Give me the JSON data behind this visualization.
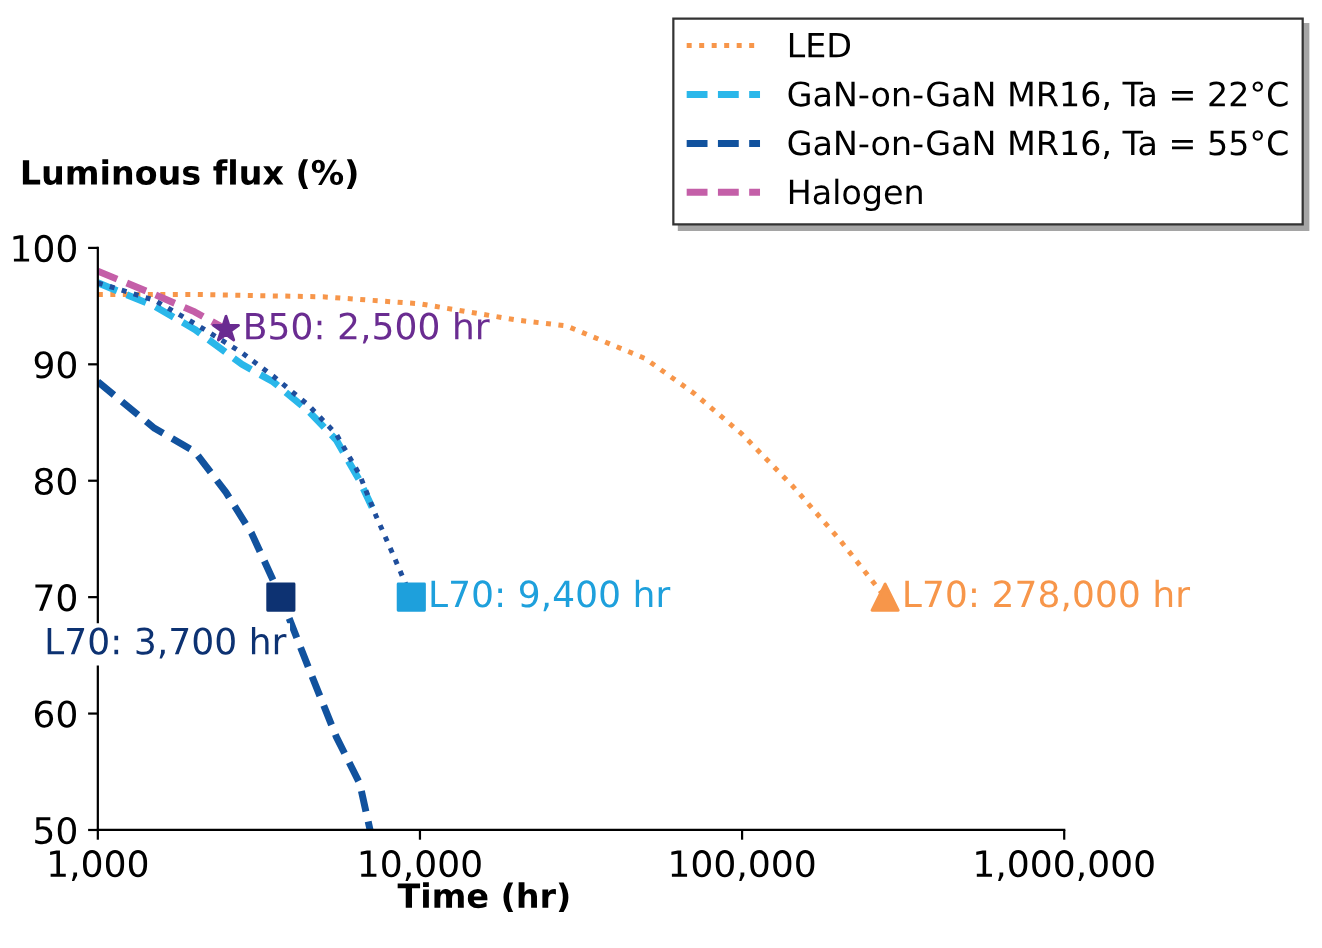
{
  "chart_data": {
    "type": "line",
    "xlabel": "Time (hr)",
    "ylabel": "Luminous flux (%)",
    "log": "x",
    "xlim": [
      1000,
      1000000
    ],
    "ylim": [
      50,
      100
    ],
    "xticks": [
      {
        "value": 1000,
        "label": "1,000"
      },
      {
        "value": 10000,
        "label": "10,000"
      },
      {
        "value": 100000,
        "label": "100,000"
      },
      {
        "value": 1000000,
        "label": "1,000,000"
      }
    ],
    "yticks": [
      50,
      60,
      70,
      80,
      90,
      100
    ],
    "grid": false,
    "legend": "top right",
    "series": [
      {
        "name": "LED",
        "color": "#f7964a",
        "line_style": "dotted",
        "x": [
          1000,
          2000,
          5000,
          10000,
          20000,
          28500,
          50000,
          71000,
          100000,
          144000,
          200000,
          278000
        ],
        "values": [
          96,
          96,
          95.8,
          95.2,
          93.8,
          93.3,
          90.5,
          87.5,
          84,
          79.5,
          75,
          70
        ]
      },
      {
        "name": "GaN-on-GaN MR16, Ta = 22°C",
        "color": "#2ab7ea",
        "line_style": "dashed",
        "x": [
          1000,
          1500,
          2000,
          2800,
          3500,
          4500,
          5500,
          6500,
          7300
        ],
        "values": [
          97,
          95,
          93,
          90,
          88.5,
          86,
          83.5,
          80,
          77
        ]
      },
      {
        "color": "#1f4e9c",
        "line_style": "dotted",
        "x": [
          1000,
          1500,
          2000,
          2800,
          3500,
          4500,
          5500,
          6500,
          7300,
          8300,
          9400
        ],
        "values": [
          97,
          95.5,
          93.5,
          91,
          89,
          86.5,
          84,
          80.5,
          77,
          73.5,
          70
        ]
      },
      {
        "name": "GaN-on-GaN MR16, Ta = 55°C",
        "color": "#11529e",
        "line_style": "dashed",
        "x": [
          1000,
          1500,
          2000,
          2500,
          3000,
          3700,
          4500,
          5500,
          6500,
          7000
        ],
        "values": [
          88.5,
          84.5,
          82.5,
          79,
          75.5,
          70,
          64,
          58,
          54,
          50
        ]
      },
      {
        "name": "Halogen",
        "color": "#c45fa8",
        "line_style": "dashed",
        "x": [
          1000,
          1500,
          2000,
          2500
        ],
        "values": [
          98,
          96,
          94.5,
          93
        ]
      },
      {
        "type": "scatter",
        "color": "#6a2c91",
        "marker": "star",
        "x": [
          2500
        ],
        "values": [
          93
        ]
      },
      {
        "type": "scatter",
        "color": "#1ea0dc",
        "marker": "square",
        "x": [
          9400
        ],
        "values": [
          70
        ]
      },
      {
        "type": "scatter",
        "color": "#f7964a",
        "marker": "triangle",
        "x": [
          278000
        ],
        "values": [
          70
        ]
      },
      {
        "type": "scatter",
        "color": "#0d3272",
        "marker": "square",
        "x": [
          3700
        ],
        "values": [
          70
        ]
      }
    ],
    "annotations": [
      {
        "text": "B50: 2,500 hr",
        "x": 2500,
        "y": 93
      },
      {
        "text": "L70: 9,400 hr",
        "x": 9400,
        "y": 70
      },
      {
        "text": "L70: 278,000 hr",
        "x": 278000,
        "y": 70
      },
      {
        "text": "L70: 3,700 hr",
        "x": 3700,
        "y": 70
      }
    ]
  }
}
